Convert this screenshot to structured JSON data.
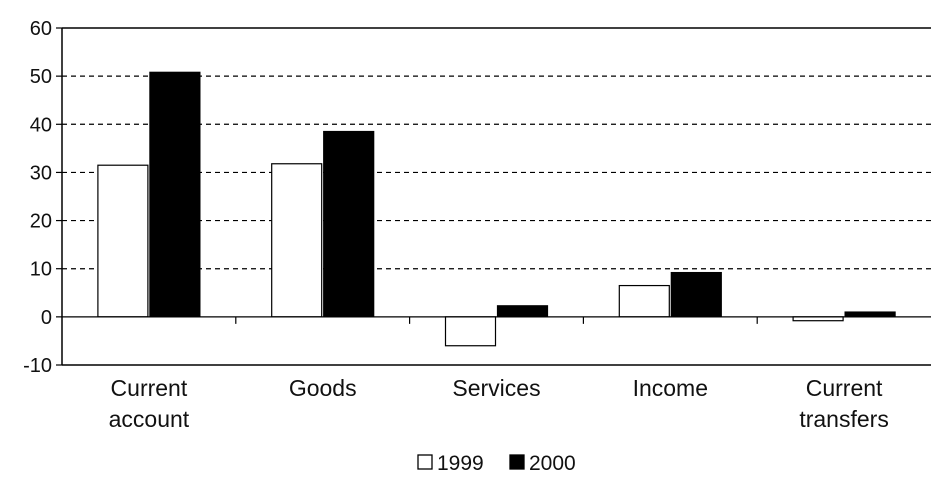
{
  "chart_data": {
    "type": "bar",
    "title": "",
    "xlabel": "",
    "ylabel": "",
    "categories": [
      [
        "Current",
        "account"
      ],
      [
        "Goods"
      ],
      [
        "Services"
      ],
      [
        "Income"
      ],
      [
        "Current",
        "transfers"
      ]
    ],
    "series": [
      {
        "name": "1999",
        "color": "#ffffff",
        "values": [
          31.5,
          31.8,
          -6.0,
          6.5,
          -0.8
        ]
      },
      {
        "name": "2000",
        "color": "#000000",
        "values": [
          50.8,
          38.5,
          2.3,
          9.2,
          1.0
        ]
      }
    ],
    "ylim": [
      -10,
      60
    ],
    "yticks": [
      -10,
      0,
      10,
      20,
      30,
      40,
      50,
      60
    ],
    "grid": true,
    "legend_position": "bottom"
  }
}
